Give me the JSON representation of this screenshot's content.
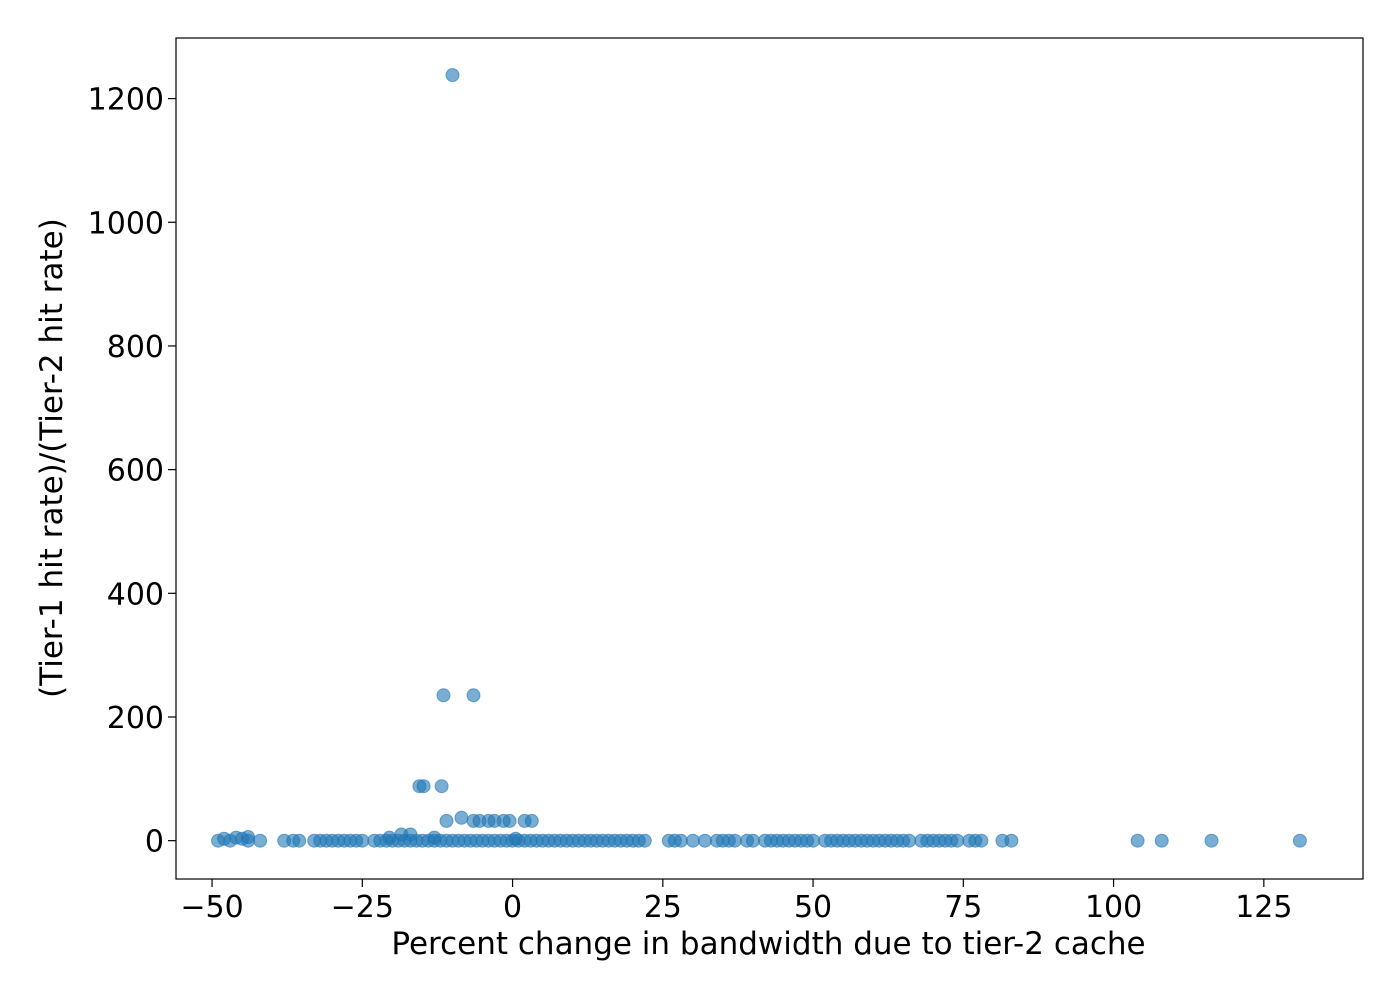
{
  "chart_data": {
    "type": "scatter",
    "title": "",
    "xlabel": "Percent change in bandwidth due to tier-2 cache",
    "ylabel": "(Tier-1 hit rate)/(Tier-2 hit rate)",
    "xlim": [
      -56,
      141.5
    ],
    "ylim": [
      -62,
      1298
    ],
    "xticks": [
      -50,
      -25,
      0,
      25,
      50,
      75,
      100,
      125
    ],
    "xtick_labels": [
      "−50",
      "−25",
      "0",
      "25",
      "50",
      "75",
      "100",
      "125"
    ],
    "yticks": [
      0,
      200,
      400,
      600,
      800,
      1000,
      1200
    ],
    "ytick_labels": [
      "0",
      "200",
      "400",
      "600",
      "800",
      "1000",
      "1200"
    ],
    "grid": false,
    "legend": false,
    "marker_color": "#1f77b4",
    "marker_alpha": 0.6,
    "series": [
      {
        "points": [
          [
            -10.0,
            1238
          ],
          [
            -11.5,
            235
          ],
          [
            -6.5,
            235
          ],
          [
            -15.5,
            88
          ],
          [
            -14.8,
            88
          ],
          [
            -11.8,
            88
          ],
          [
            -11.0,
            32
          ],
          [
            -6.5,
            32
          ],
          [
            -5.5,
            32
          ],
          [
            -4.0,
            32
          ],
          [
            -3.0,
            32
          ],
          [
            -1.5,
            32
          ],
          [
            -0.5,
            32
          ],
          [
            2.0,
            32
          ],
          [
            3.2,
            32
          ],
          [
            -8.5,
            37
          ],
          [
            -18.5,
            10
          ],
          [
            -17.0,
            10
          ],
          [
            -44.0,
            6
          ],
          [
            -46.0,
            5
          ],
          [
            -20.5,
            5
          ],
          [
            -13.0,
            5
          ],
          [
            -48.0,
            3
          ],
          [
            -45.0,
            3
          ],
          [
            0.5,
            3
          ],
          [
            -49.0,
            0
          ],
          [
            -47.0,
            0
          ],
          [
            -44.0,
            0
          ],
          [
            -42.0,
            0
          ],
          [
            -38.0,
            0
          ],
          [
            -36.5,
            0
          ],
          [
            -35.5,
            0
          ],
          [
            -33.0,
            0
          ],
          [
            -32.0,
            0
          ],
          [
            -31.0,
            0
          ],
          [
            -30.0,
            0
          ],
          [
            -29.0,
            0
          ],
          [
            -28.0,
            0
          ],
          [
            -27.0,
            0
          ],
          [
            -26.0,
            0
          ],
          [
            -25.0,
            0
          ],
          [
            -23.0,
            0
          ],
          [
            -22.0,
            0
          ],
          [
            -21.0,
            0
          ],
          [
            -20.0,
            0
          ],
          [
            -19.0,
            0
          ],
          [
            -18.0,
            0
          ],
          [
            -17.0,
            0
          ],
          [
            -16.0,
            0
          ],
          [
            -15.0,
            0
          ],
          [
            -14.0,
            0
          ],
          [
            -13.0,
            0
          ],
          [
            -12.0,
            0
          ],
          [
            -11.0,
            0
          ],
          [
            -10.0,
            0
          ],
          [
            -9.0,
            0
          ],
          [
            -8.0,
            0
          ],
          [
            -7.0,
            0
          ],
          [
            -6.0,
            0
          ],
          [
            -5.0,
            0
          ],
          [
            -4.0,
            0
          ],
          [
            -3.0,
            0
          ],
          [
            -2.0,
            0
          ],
          [
            -1.0,
            0
          ],
          [
            0.0,
            0
          ],
          [
            1.0,
            0
          ],
          [
            2.0,
            0
          ],
          [
            3.0,
            0
          ],
          [
            4.0,
            0
          ],
          [
            5.0,
            0
          ],
          [
            6.0,
            0
          ],
          [
            7.0,
            0
          ],
          [
            8.0,
            0
          ],
          [
            9.0,
            0
          ],
          [
            10.0,
            0
          ],
          [
            11.0,
            0
          ],
          [
            12.0,
            0
          ],
          [
            13.0,
            0
          ],
          [
            14.0,
            0
          ],
          [
            15.0,
            0
          ],
          [
            16.0,
            0
          ],
          [
            17.0,
            0
          ],
          [
            18.0,
            0
          ],
          [
            19.0,
            0
          ],
          [
            20.0,
            0
          ],
          [
            21.0,
            0
          ],
          [
            22.0,
            0
          ],
          [
            26.0,
            0
          ],
          [
            27.0,
            0
          ],
          [
            28.0,
            0
          ],
          [
            30.0,
            0
          ],
          [
            32.0,
            0
          ],
          [
            34.0,
            0
          ],
          [
            35.0,
            0
          ],
          [
            36.0,
            0
          ],
          [
            37.0,
            0
          ],
          [
            39.0,
            0
          ],
          [
            40.0,
            0
          ],
          [
            42.0,
            0
          ],
          [
            43.0,
            0
          ],
          [
            44.0,
            0
          ],
          [
            45.0,
            0
          ],
          [
            46.0,
            0
          ],
          [
            47.0,
            0
          ],
          [
            48.0,
            0
          ],
          [
            49.0,
            0
          ],
          [
            50.0,
            0
          ],
          [
            52.0,
            0
          ],
          [
            53.0,
            0
          ],
          [
            54.0,
            0
          ],
          [
            55.0,
            0
          ],
          [
            56.0,
            0
          ],
          [
            57.0,
            0
          ],
          [
            58.0,
            0
          ],
          [
            59.0,
            0
          ],
          [
            60.0,
            0
          ],
          [
            61.0,
            0
          ],
          [
            62.0,
            0
          ],
          [
            63.0,
            0
          ],
          [
            64.0,
            0
          ],
          [
            65.0,
            0
          ],
          [
            66.0,
            0
          ],
          [
            68.0,
            0
          ],
          [
            69.0,
            0
          ],
          [
            70.0,
            0
          ],
          [
            71.0,
            0
          ],
          [
            72.0,
            0
          ],
          [
            73.0,
            0
          ],
          [
            74.0,
            0
          ],
          [
            76.0,
            0
          ],
          [
            77.0,
            0
          ],
          [
            78.0,
            0
          ],
          [
            81.5,
            0
          ],
          [
            83.0,
            0
          ],
          [
            104.0,
            0
          ],
          [
            108.0,
            0
          ],
          [
            116.3,
            0
          ],
          [
            131.0,
            0
          ]
        ]
      }
    ]
  }
}
